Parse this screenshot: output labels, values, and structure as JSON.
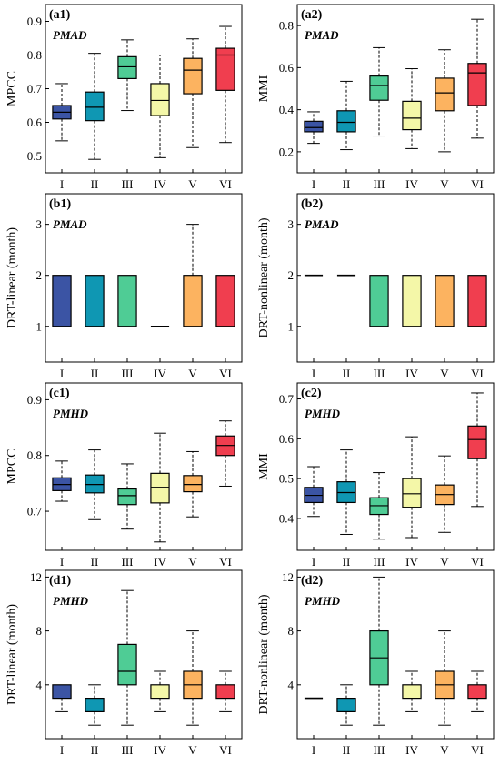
{
  "chart_data": [
    {
      "type": "box",
      "panel": "(a1)",
      "model": "PMAD",
      "ylabel": "MPCC",
      "ylim": [
        0.45,
        0.95
      ],
      "yticks": [
        0.5,
        0.6,
        0.7,
        0.8,
        0.9
      ],
      "categories": [
        "I",
        "II",
        "III",
        "IV",
        "V",
        "VI"
      ],
      "boxes": [
        {
          "min": 0.545,
          "q1": 0.61,
          "median": 0.63,
          "q3": 0.65,
          "max": 0.715
        },
        {
          "min": 0.49,
          "q1": 0.605,
          "median": 0.645,
          "q3": 0.69,
          "max": 0.805
        },
        {
          "min": 0.635,
          "q1": 0.73,
          "median": 0.765,
          "q3": 0.795,
          "max": 0.845
        },
        {
          "min": 0.495,
          "q1": 0.62,
          "median": 0.665,
          "q3": 0.715,
          "max": 0.8
        },
        {
          "min": 0.525,
          "q1": 0.685,
          "median": 0.755,
          "q3": 0.79,
          "max": 0.848
        },
        {
          "min": 0.54,
          "q1": 0.695,
          "median": 0.8,
          "q3": 0.82,
          "max": 0.885
        }
      ]
    },
    {
      "type": "box",
      "panel": "(a2)",
      "model": "PMAD",
      "ylabel": "MMI",
      "ylim": [
        0.1,
        0.9
      ],
      "yticks": [
        0.2,
        0.4,
        0.6,
        0.8
      ],
      "categories": [
        "I",
        "II",
        "III",
        "IV",
        "V",
        "VI"
      ],
      "boxes": [
        {
          "min": 0.24,
          "q1": 0.295,
          "median": 0.315,
          "q3": 0.345,
          "max": 0.39
        },
        {
          "min": 0.21,
          "q1": 0.295,
          "median": 0.34,
          "q3": 0.395,
          "max": 0.535
        },
        {
          "min": 0.275,
          "q1": 0.445,
          "median": 0.515,
          "q3": 0.56,
          "max": 0.695
        },
        {
          "min": 0.215,
          "q1": 0.305,
          "median": 0.36,
          "q3": 0.44,
          "max": 0.595
        },
        {
          "min": 0.2,
          "q1": 0.395,
          "median": 0.48,
          "q3": 0.55,
          "max": 0.685
        },
        {
          "min": 0.265,
          "q1": 0.42,
          "median": 0.575,
          "q3": 0.62,
          "max": 0.83
        }
      ]
    },
    {
      "type": "box",
      "panel": "(b1)",
      "model": "PMAD",
      "ylabel": "DRT-linear (month)",
      "ylim": [
        0.3,
        3.6
      ],
      "yticks": [
        1,
        2,
        3
      ],
      "categories": [
        "I",
        "II",
        "III",
        "IV",
        "V",
        "VI"
      ],
      "boxes": [
        {
          "min": 1,
          "q1": 1,
          "median": 1,
          "q3": 2,
          "max": 2
        },
        {
          "min": 1,
          "q1": 1,
          "median": 1,
          "q3": 2,
          "max": 2
        },
        {
          "min": 1,
          "q1": 1,
          "median": 1,
          "q3": 2,
          "max": 2
        },
        {
          "min": 1,
          "q1": 1,
          "median": 1,
          "q3": 1,
          "max": 1
        },
        {
          "min": 1,
          "q1": 1,
          "median": 1,
          "q3": 2,
          "max": 3
        },
        {
          "min": 1,
          "q1": 1,
          "median": 1,
          "q3": 2,
          "max": 2
        }
      ]
    },
    {
      "type": "box",
      "panel": "(b2)",
      "model": "PMAD",
      "ylabel": "DRT-nonlinear (month)",
      "ylim": [
        0.3,
        3.6
      ],
      "yticks": [
        1,
        2,
        3
      ],
      "categories": [
        "I",
        "II",
        "III",
        "IV",
        "V",
        "VI"
      ],
      "boxes": [
        {
          "min": 2,
          "q1": 2,
          "median": 2,
          "q3": 2,
          "max": 2
        },
        {
          "min": 2,
          "q1": 2,
          "median": 2,
          "q3": 2,
          "max": 2
        },
        {
          "min": 1,
          "q1": 1,
          "median": 1,
          "q3": 2,
          "max": 2
        },
        {
          "min": 1,
          "q1": 1,
          "median": 1,
          "q3": 2,
          "max": 2
        },
        {
          "min": 1,
          "q1": 1,
          "median": 1,
          "q3": 2,
          "max": 2
        },
        {
          "min": 1,
          "q1": 1,
          "median": 1,
          "q3": 2,
          "max": 2
        }
      ]
    },
    {
      "type": "box",
      "panel": "(c1)",
      "model": "PMHD",
      "ylabel": "MPCC",
      "ylim": [
        0.63,
        0.93
      ],
      "yticks": [
        0.7,
        0.8,
        0.9
      ],
      "categories": [
        "I",
        "II",
        "III",
        "IV",
        "V",
        "VI"
      ],
      "boxes": [
        {
          "min": 0.718,
          "q1": 0.737,
          "median": 0.748,
          "q3": 0.76,
          "max": 0.79
        },
        {
          "min": 0.685,
          "q1": 0.733,
          "median": 0.748,
          "q3": 0.765,
          "max": 0.81
        },
        {
          "min": 0.668,
          "q1": 0.712,
          "median": 0.728,
          "q3": 0.74,
          "max": 0.785
        },
        {
          "min": 0.645,
          "q1": 0.715,
          "median": 0.743,
          "q3": 0.768,
          "max": 0.84
        },
        {
          "min": 0.69,
          "q1": 0.735,
          "median": 0.748,
          "q3": 0.764,
          "max": 0.807
        },
        {
          "min": 0.745,
          "q1": 0.8,
          "median": 0.818,
          "q3": 0.835,
          "max": 0.862
        }
      ]
    },
    {
      "type": "box",
      "panel": "(c2)",
      "model": "PMHD",
      "ylabel": "MMI",
      "ylim": [
        0.32,
        0.74
      ],
      "yticks": [
        0.4,
        0.5,
        0.6,
        0.7
      ],
      "categories": [
        "I",
        "II",
        "III",
        "IV",
        "V",
        "VI"
      ],
      "boxes": [
        {
          "min": 0.405,
          "q1": 0.44,
          "median": 0.458,
          "q3": 0.478,
          "max": 0.53
        },
        {
          "min": 0.36,
          "q1": 0.44,
          "median": 0.465,
          "q3": 0.492,
          "max": 0.572
        },
        {
          "min": 0.348,
          "q1": 0.41,
          "median": 0.432,
          "q3": 0.452,
          "max": 0.515
        },
        {
          "min": 0.352,
          "q1": 0.428,
          "median": 0.462,
          "q3": 0.5,
          "max": 0.605
        },
        {
          "min": 0.365,
          "q1": 0.435,
          "median": 0.46,
          "q3": 0.484,
          "max": 0.557
        },
        {
          "min": 0.43,
          "q1": 0.55,
          "median": 0.598,
          "q3": 0.632,
          "max": 0.715
        }
      ]
    },
    {
      "type": "box",
      "panel": "(d1)",
      "model": "PMHD",
      "ylabel": "DRT-linear (month)",
      "ylim": [
        0,
        12.5
      ],
      "yticks": [
        4,
        8,
        12
      ],
      "categories": [
        "I",
        "II",
        "III",
        "IV",
        "V",
        "VI"
      ],
      "boxes": [
        {
          "min": 2,
          "q1": 3,
          "median": 3,
          "q3": 4,
          "max": 4
        },
        {
          "min": 1,
          "q1": 2,
          "median": 2,
          "q3": 3,
          "max": 4
        },
        {
          "min": 1,
          "q1": 4,
          "median": 5,
          "q3": 7,
          "max": 11
        },
        {
          "min": 2,
          "q1": 3,
          "median": 3,
          "q3": 4,
          "max": 5
        },
        {
          "min": 1,
          "q1": 3,
          "median": 4,
          "q3": 5,
          "max": 8
        },
        {
          "min": 2,
          "q1": 3,
          "median": 3,
          "q3": 4,
          "max": 5
        }
      ]
    },
    {
      "type": "box",
      "panel": "(d2)",
      "model": "PMHD",
      "ylabel": "DRT-nonlinear (month)",
      "ylim": [
        0,
        12.5
      ],
      "yticks": [
        4,
        8,
        12
      ],
      "categories": [
        "I",
        "II",
        "III",
        "IV",
        "V",
        "VI"
      ],
      "boxes": [
        {
          "min": 3,
          "q1": 3,
          "median": 3,
          "q3": 3,
          "max": 3
        },
        {
          "min": 1,
          "q1": 2,
          "median": 2,
          "q3": 3,
          "max": 4
        },
        {
          "min": 1,
          "q1": 4,
          "median": 6,
          "q3": 8,
          "max": 12
        },
        {
          "min": 2,
          "q1": 3,
          "median": 3,
          "q3": 4,
          "max": 5
        },
        {
          "min": 1,
          "q1": 3,
          "median": 4,
          "q3": 5,
          "max": 8
        },
        {
          "min": 2,
          "q1": 3,
          "median": 3,
          "q3": 4,
          "max": 5
        }
      ]
    }
  ],
  "colors": [
    "#3b54a4",
    "#0f97b3",
    "#4fcc95",
    "#f4f7a8",
    "#fcb360",
    "#f03e4f"
  ]
}
